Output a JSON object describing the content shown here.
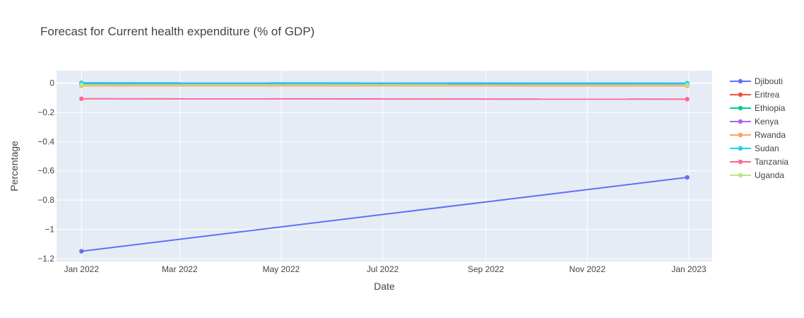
{
  "chart_data": {
    "type": "line",
    "title": "Forecast for Current health expenditure (% of GDP)",
    "xlabel": "Date",
    "ylabel": "Percentage",
    "x": [
      "2022-01-01",
      "2022-12-31"
    ],
    "xlim": [
      "2021-12-17",
      "2023-01-15"
    ],
    "ylim": [
      -1.22,
      0.085
    ],
    "xticks": [
      {
        "value": "2022-01-01",
        "label": "Jan 2022"
      },
      {
        "value": "2022-03-01",
        "label": "Mar 2022"
      },
      {
        "value": "2022-05-01",
        "label": "May 2022"
      },
      {
        "value": "2022-07-01",
        "label": "Jul 2022"
      },
      {
        "value": "2022-09-01",
        "label": "Sep 2022"
      },
      {
        "value": "2022-11-01",
        "label": "Nov 2022"
      },
      {
        "value": "2023-01-01",
        "label": "Jan 2023"
      }
    ],
    "yticks": [
      {
        "value": 0,
        "label": "0"
      },
      {
        "value": -0.2,
        "label": "−0.2"
      },
      {
        "value": -0.4,
        "label": "−0.4"
      },
      {
        "value": -0.6,
        "label": "−0.6"
      },
      {
        "value": -0.8,
        "label": "−0.8"
      },
      {
        "value": -1,
        "label": "−1"
      },
      {
        "value": -1.2,
        "label": "−1.2"
      }
    ],
    "grid": true,
    "legend_position": "right",
    "series": [
      {
        "name": "Djibouti",
        "color": "#636efa",
        "values": [
          -1.15,
          -0.645
        ]
      },
      {
        "name": "Eritrea",
        "color": "#ef553b",
        "values": [
          -0.005,
          -0.006
        ]
      },
      {
        "name": "Ethiopia",
        "color": "#00cc96",
        "values": [
          0.0,
          -0.001
        ]
      },
      {
        "name": "Kenya",
        "color": "#ab63fa",
        "values": [
          -0.008,
          -0.009
        ]
      },
      {
        "name": "Rwanda",
        "color": "#ffa15a",
        "values": [
          -0.018,
          -0.019
        ]
      },
      {
        "name": "Sudan",
        "color": "#19d3f3",
        "values": [
          0.002,
          0.0
        ]
      },
      {
        "name": "Tanzania",
        "color": "#ff6692",
        "values": [
          -0.107,
          -0.11
        ]
      },
      {
        "name": "Uganda",
        "color": "#b6e880",
        "values": [
          -0.012,
          -0.013
        ]
      }
    ]
  }
}
